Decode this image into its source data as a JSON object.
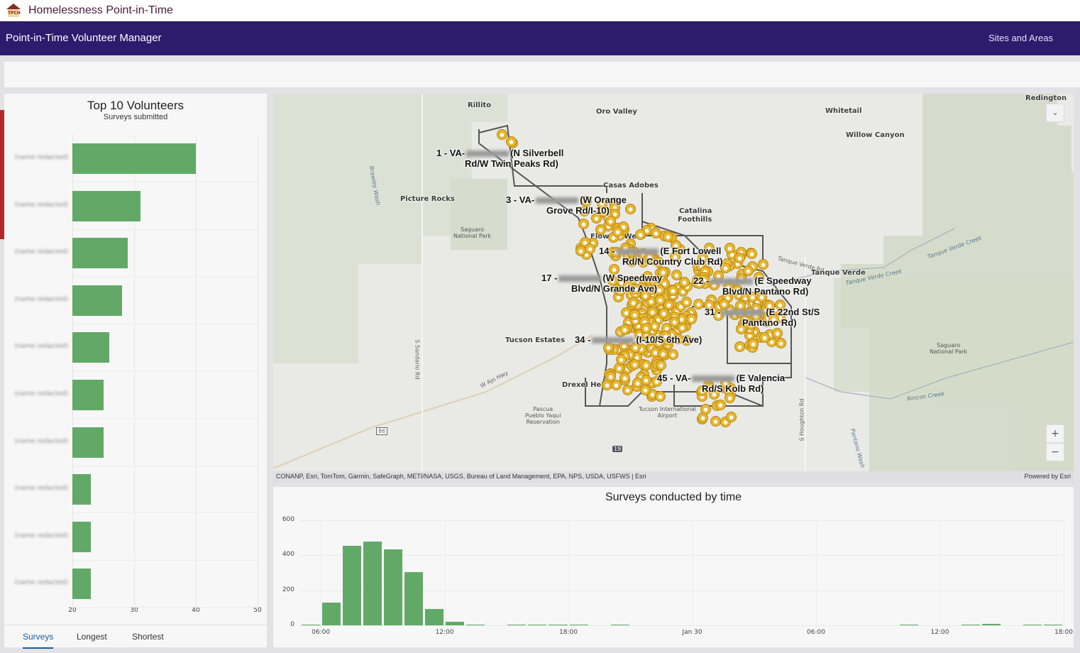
{
  "header": {
    "app_title": "Homelessness Point-in-Time",
    "logo_text": "TPCH",
    "nav_title": "Point-in-Time Volunteer Manager",
    "nav_link": "Sites and Areas"
  },
  "left_panel": {
    "tabs": [
      {
        "label": "Surveys",
        "active": true
      },
      {
        "label": "Longest",
        "active": false
      },
      {
        "label": "Shortest",
        "active": false
      }
    ]
  },
  "map": {
    "places": [
      "Rillito",
      "Oro Valley",
      "Whitetail",
      "Willow Canyon",
      "Redington",
      "Catalina",
      "Foothills",
      "Picture Rocks",
      "Casas Adobes",
      "Flowing Wells",
      "Tanque Verde",
      "Tucson Estates",
      "Drexel Heights"
    ],
    "small_places": [
      "Saguaro\nNational Park",
      "Saguaro\nNational Park",
      "Pascua\nPueblo Yaqui\nReservation",
      "Tucson International\nAirport"
    ],
    "roads": [
      "W Ajo Hwy",
      "S Sandario Rd",
      "S Houghton Rd",
      "Tanque Verde Rd",
      "86",
      "19"
    ],
    "water": [
      "Tanque Verde Creek",
      "Tanque Verde Creek",
      "Rincon Creek",
      "Pantano Wash",
      "Brawley Wash"
    ],
    "sites": [
      {
        "prefix": "1 - VA-",
        "l1": "(N Silverbell",
        "l2": "Rd/W Twin Peaks Rd)"
      },
      {
        "prefix": "3 - VA-",
        "l1": "(W Orange",
        "l2": "Grove Rd/I-10)"
      },
      {
        "prefix": "14 -",
        "l1": "(E Fort Lowell",
        "l2": "Rd/N Country Club Rd)"
      },
      {
        "prefix": "17 -",
        "l1": "(W Speedway",
        "l2": "Blvd/N Grande Ave)"
      },
      {
        "prefix": "22 -",
        "l1": "(E Speedway",
        "l2": "Blvd/N Pantano Rd)"
      },
      {
        "prefix": "31 -",
        "l1": "(E 22nd St/S",
        "l2": "Pantano Rd)"
      },
      {
        "prefix": "34 -",
        "l1": "(I-10/S 6th Ave)",
        "l2": ""
      },
      {
        "prefix": "45 - VA-",
        "l1": "(E Valencia",
        "l2": "Rd/S Kolb Rd)"
      }
    ],
    "zoom_in": "+",
    "zoom_out": "−",
    "attribution": "CONANP, Esri, TomTom, Garmin, SafeGraph, METI/NASA, USGS, Bureau of Land Management, EPA, NPS, USDA, USFWS | Esri",
    "powered_by": "Powered by Esri"
  },
  "chart_data": [
    {
      "type": "bar",
      "orientation": "horizontal",
      "title": "Top 10 Volunteers",
      "subtitle": "Surveys submitted",
      "categories": [
        "(name redacted)",
        "(name redacted)",
        "(name redacted)",
        "(name redacted)",
        "(name redacted)",
        "(name redacted)",
        "(name redacted)",
        "(name redacted)",
        "(name redacted)",
        "(name redacted)"
      ],
      "values": [
        40,
        31,
        29,
        28,
        26,
        25,
        25,
        23,
        23,
        23
      ],
      "xlim": [
        20,
        50
      ],
      "xticks": [
        "20",
        "30",
        "40",
        "50"
      ],
      "color": "#62a968"
    },
    {
      "type": "bar",
      "title": "Surveys conducted by time",
      "bin": "1 hour",
      "start_hour": 5,
      "values": [
        2,
        130,
        455,
        478,
        432,
        305,
        92,
        20,
        2,
        0,
        5,
        5,
        2,
        2,
        0,
        2,
        0,
        0,
        0,
        0,
        0,
        0,
        0,
        0,
        0,
        0,
        0,
        0,
        0,
        2,
        0,
        0,
        4,
        10,
        0,
        5,
        5
      ],
      "ylim": [
        0,
        600
      ],
      "yticks": [
        "0",
        "200",
        "400",
        "600"
      ],
      "xticks": [
        "06:00",
        "12:00",
        "18:00",
        "Jan 30",
        "06:00",
        "12:00",
        "18:00"
      ],
      "color": "#62a968"
    }
  ]
}
